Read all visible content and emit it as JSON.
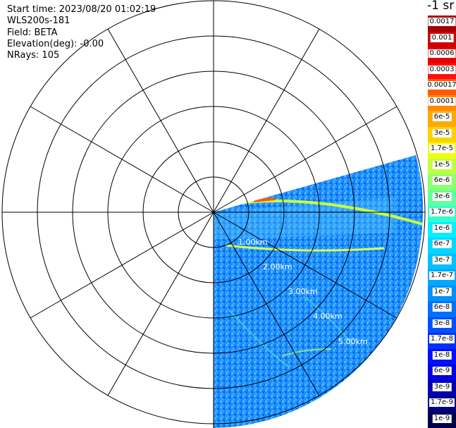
{
  "header": {
    "start_time": "Start time: 2023/08/20 01:02:19",
    "instrument": "WLS200s-181",
    "field": "Field: BETA",
    "elevation": "Elevation(deg): -0.00",
    "nrays": "NRays: 105"
  },
  "range_labels": [
    "1.00km",
    "2.00km",
    "3.00km",
    "4.00km",
    "5.00km"
  ],
  "colorbar": {
    "title": "-1 sr",
    "labels": [
      "0.0017",
      "0.001",
      "0.0006",
      "0.0003",
      "0.00017",
      "0.0001",
      "6e-5",
      "3e-5",
      "1.7e-5",
      "1e-5",
      "6e-6",
      "3e-6",
      "1.7e-6",
      "1e-6",
      "6e-7",
      "3e-7",
      "1.7e-7",
      "1e-7",
      "6e-8",
      "3e-8",
      "1.7e-8",
      "1e-8",
      "6e-9",
      "3e-9",
      "1.7e-9",
      "1e-9"
    ],
    "colors": [
      "#a50000",
      "#d00000",
      "#e80000",
      "#ff1010",
      "#ff5a00",
      "#ff8a00",
      "#ffaa00",
      "#ffd000",
      "#f0ff10",
      "#c0ff40",
      "#90ff70",
      "#60ffa0",
      "#30ffd0",
      "#00f0ff",
      "#00d8ff",
      "#00c0ff",
      "#00a8ff",
      "#0090ff",
      "#0070ff",
      "#0050ff",
      "#0030ff",
      "#0010ff",
      "#0000e0",
      "#0000b0",
      "#000080",
      "#000050"
    ]
  }
}
